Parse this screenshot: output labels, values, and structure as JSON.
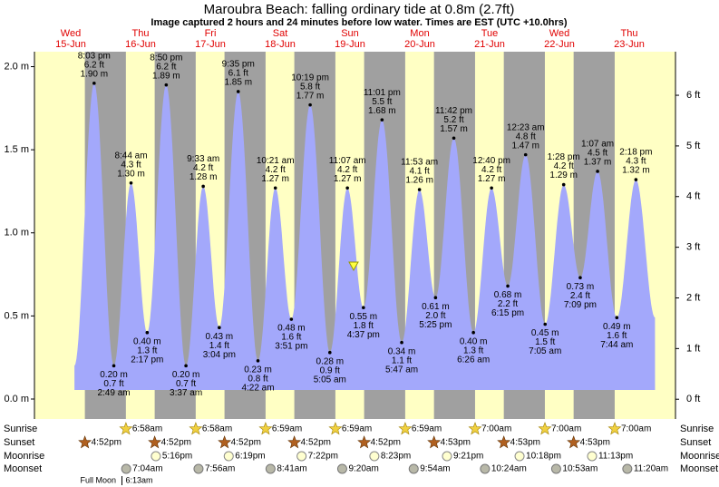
{
  "chart_data": {
    "type": "tide",
    "title": "Maroubra Beach: falling  ordinary tide at 0.8m (2.7ft)",
    "subtitle": "Image captured 2 hours and 24 minutes before low water. Times are EST (UTC +10.0hrs)",
    "ylim": [
      -0.12,
      2.09
    ],
    "yticks": [
      {
        "value": 0,
        "label": "0.0 m"
      },
      {
        "value": 0.5,
        "label": "0.5 m"
      },
      {
        "value": 1,
        "label": "1.0 m"
      },
      {
        "value": 1.5,
        "label": "1.5 m"
      },
      {
        "value": 2,
        "label": "2.0 m"
      }
    ],
    "y2lim": [
      -0.39,
      6.86
    ],
    "y2ticks": [
      {
        "value": 0,
        "label": "0 ft"
      },
      {
        "value": 1,
        "label": "1 ft"
      },
      {
        "value": 2,
        "label": "2 ft"
      },
      {
        "value": 3,
        "label": "3 ft"
      },
      {
        "value": 4,
        "label": "4 ft"
      },
      {
        "value": 5,
        "label": "5 ft"
      },
      {
        "value": 6,
        "label": "6 ft"
      }
    ],
    "row_labels": {
      "sunrise": "Sunrise",
      "sunset": "Sunset",
      "moonrise": "Moonrise",
      "moonset": "Moonset"
    },
    "days": [
      {
        "name": "Wed",
        "date": "15-Jun",
        "tides": [
          {
            "time": "8:03 pm",
            "ft": "6.2 ft",
            "value": 1.9,
            "value_label": "1.90 m"
          }
        ],
        "sunset": "4:52pm"
      },
      {
        "name": "Thu",
        "date": "16-Jun",
        "tides": [
          {
            "time": "2:49 am",
            "ft": "0.7 ft",
            "value": 0.2,
            "value_label": "0.20 m"
          },
          {
            "time": "8:44 am",
            "ft": "4.3 ft",
            "value": 1.3,
            "value_label": "1.30 m"
          },
          {
            "time": "2:17 pm",
            "ft": "1.3 ft",
            "value": 0.4,
            "value_label": "0.40 m"
          },
          {
            "time": "8:50 pm",
            "ft": "6.2 ft",
            "value": 1.89,
            "value_label": "1.89 m"
          }
        ],
        "sunrise": "6:58am",
        "sunset": "4:52pm",
        "moonrise": "5:16pm",
        "moonset": "7:04am",
        "moon_phase": "Full Moon",
        "moon_phase_time": "6:13am"
      },
      {
        "name": "Fri",
        "date": "17-Jun",
        "tides": [
          {
            "time": "3:37 am",
            "ft": "0.7 ft",
            "value": 0.2,
            "value_label": "0.20 m"
          },
          {
            "time": "9:33 am",
            "ft": "4.2 ft",
            "value": 1.28,
            "value_label": "1.28 m"
          },
          {
            "time": "3:04 pm",
            "ft": "1.4 ft",
            "value": 0.43,
            "value_label": "0.43 m"
          },
          {
            "time": "9:35 pm",
            "ft": "6.1 ft",
            "value": 1.85,
            "value_label": "1.85 m"
          }
        ],
        "sunrise": "6:58am",
        "sunset": "4:52pm",
        "moonrise": "6:19pm",
        "moonset": "7:56am"
      },
      {
        "name": "Sat",
        "date": "18-Jun",
        "tides": [
          {
            "time": "4:22 am",
            "ft": "0.8 ft",
            "value": 0.23,
            "value_label": "0.23 m"
          },
          {
            "time": "10:21 am",
            "ft": "4.2 ft",
            "value": 1.27,
            "value_label": "1.27 m"
          },
          {
            "time": "3:51 pm",
            "ft": "1.6 ft",
            "value": 0.48,
            "value_label": "0.48 m"
          },
          {
            "time": "10:19 pm",
            "ft": "5.8 ft",
            "value": 1.77,
            "value_label": "1.77 m"
          }
        ],
        "sunrise": "6:59am",
        "sunset": "4:52pm",
        "moonrise": "7:22pm",
        "moonset": "8:41am"
      },
      {
        "name": "Sun",
        "date": "19-Jun",
        "tides": [
          {
            "time": "5:05 am",
            "ft": "0.9 ft",
            "value": 0.28,
            "value_label": "0.28 m"
          },
          {
            "time": "11:07 am",
            "ft": "4.2 ft",
            "value": 1.27,
            "value_label": "1.27 m"
          },
          {
            "time": "4:37 pm",
            "ft": "1.8 ft",
            "value": 0.55,
            "value_label": "0.55 m"
          },
          {
            "time": "11:01 pm",
            "ft": "5.5 ft",
            "value": 1.68,
            "value_label": "1.68 m"
          }
        ],
        "sunrise": "6:59am",
        "sunset": "4:52pm",
        "moonrise": "8:23pm",
        "moonset": "9:20am"
      },
      {
        "name": "Mon",
        "date": "20-Jun",
        "tides": [
          {
            "time": "5:47 am",
            "ft": "1.1 ft",
            "value": 0.34,
            "value_label": "0.34 m"
          },
          {
            "time": "11:53 am",
            "ft": "4.1 ft",
            "value": 1.26,
            "value_label": "1.26 m"
          },
          {
            "time": "5:25 pm",
            "ft": "2.0 ft",
            "value": 0.61,
            "value_label": "0.61 m"
          },
          {
            "time": "11:42 pm",
            "ft": "5.2 ft",
            "value": 1.57,
            "value_label": "1.57 m"
          }
        ],
        "sunrise": "6:59am",
        "sunset": "4:53pm",
        "moonrise": "9:21pm",
        "moonset": "9:54am"
      },
      {
        "name": "Tue",
        "date": "21-Jun",
        "tides": [
          {
            "time": "6:26 am",
            "ft": "1.3 ft",
            "value": 0.4,
            "value_label": "0.40 m"
          },
          {
            "time": "12:40 pm",
            "ft": "4.2 ft",
            "value": 1.27,
            "value_label": "1.27 m"
          },
          {
            "time": "6:15 pm",
            "ft": "2.2 ft",
            "value": 0.68,
            "value_label": "0.68 m"
          }
        ],
        "sunrise": "7:00am",
        "sunset": "4:53pm",
        "moonrise": "10:18pm",
        "moonset": "10:24am"
      },
      {
        "name": "Wed",
        "date": "22-Jun",
        "tides": [
          {
            "time": "12:23 am",
            "ft": "4.8 ft",
            "value": 1.47,
            "value_label": "1.47 m"
          },
          {
            "time": "7:05 am",
            "ft": "1.5 ft",
            "value": 0.45,
            "value_label": "0.45 m"
          },
          {
            "time": "1:28 pm",
            "ft": "4.2 ft",
            "value": 1.29,
            "value_label": "1.29 m"
          },
          {
            "time": "7:09 pm",
            "ft": "2.4 ft",
            "value": 0.73,
            "value_label": "0.73 m"
          }
        ],
        "sunrise": "7:00am",
        "sunset": "4:53pm",
        "moonrise": "11:13pm",
        "moonset": "10:53am"
      },
      {
        "name": "Thu",
        "date": "23-Jun",
        "tides": [
          {
            "time": "1:07 am",
            "ft": "4.5 ft",
            "value": 1.37,
            "value_label": "1.37 m"
          },
          {
            "time": "7:44 am",
            "ft": "1.6 ft",
            "value": 0.49,
            "value_label": "0.49 m"
          },
          {
            "time": "2:18 pm",
            "ft": "4.3 ft",
            "value": 1.32,
            "value_label": "1.32 m"
          }
        ],
        "sunrise": "7:00am",
        "moonset": "11:20am"
      }
    ]
  }
}
